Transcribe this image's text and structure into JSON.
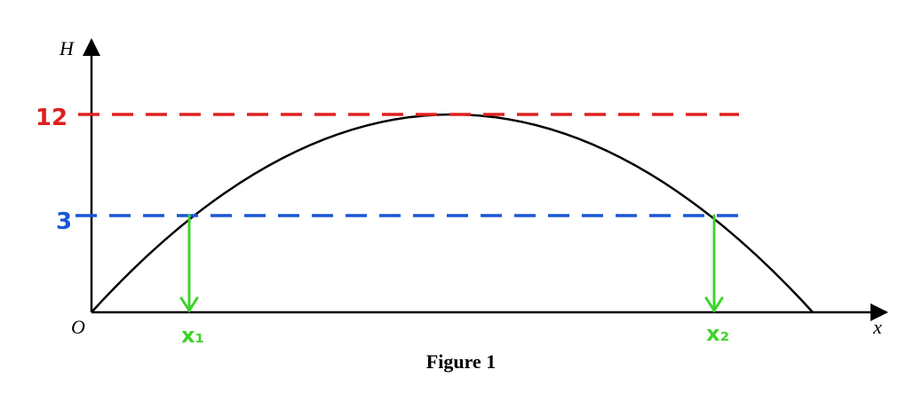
{
  "axes": {
    "y_label": "H",
    "origin_label": "O",
    "x_label": "x"
  },
  "levels": {
    "top": "12",
    "middle": "3"
  },
  "roots": {
    "first": "x₁",
    "second": "x₂"
  },
  "caption": "Figure 1"
}
